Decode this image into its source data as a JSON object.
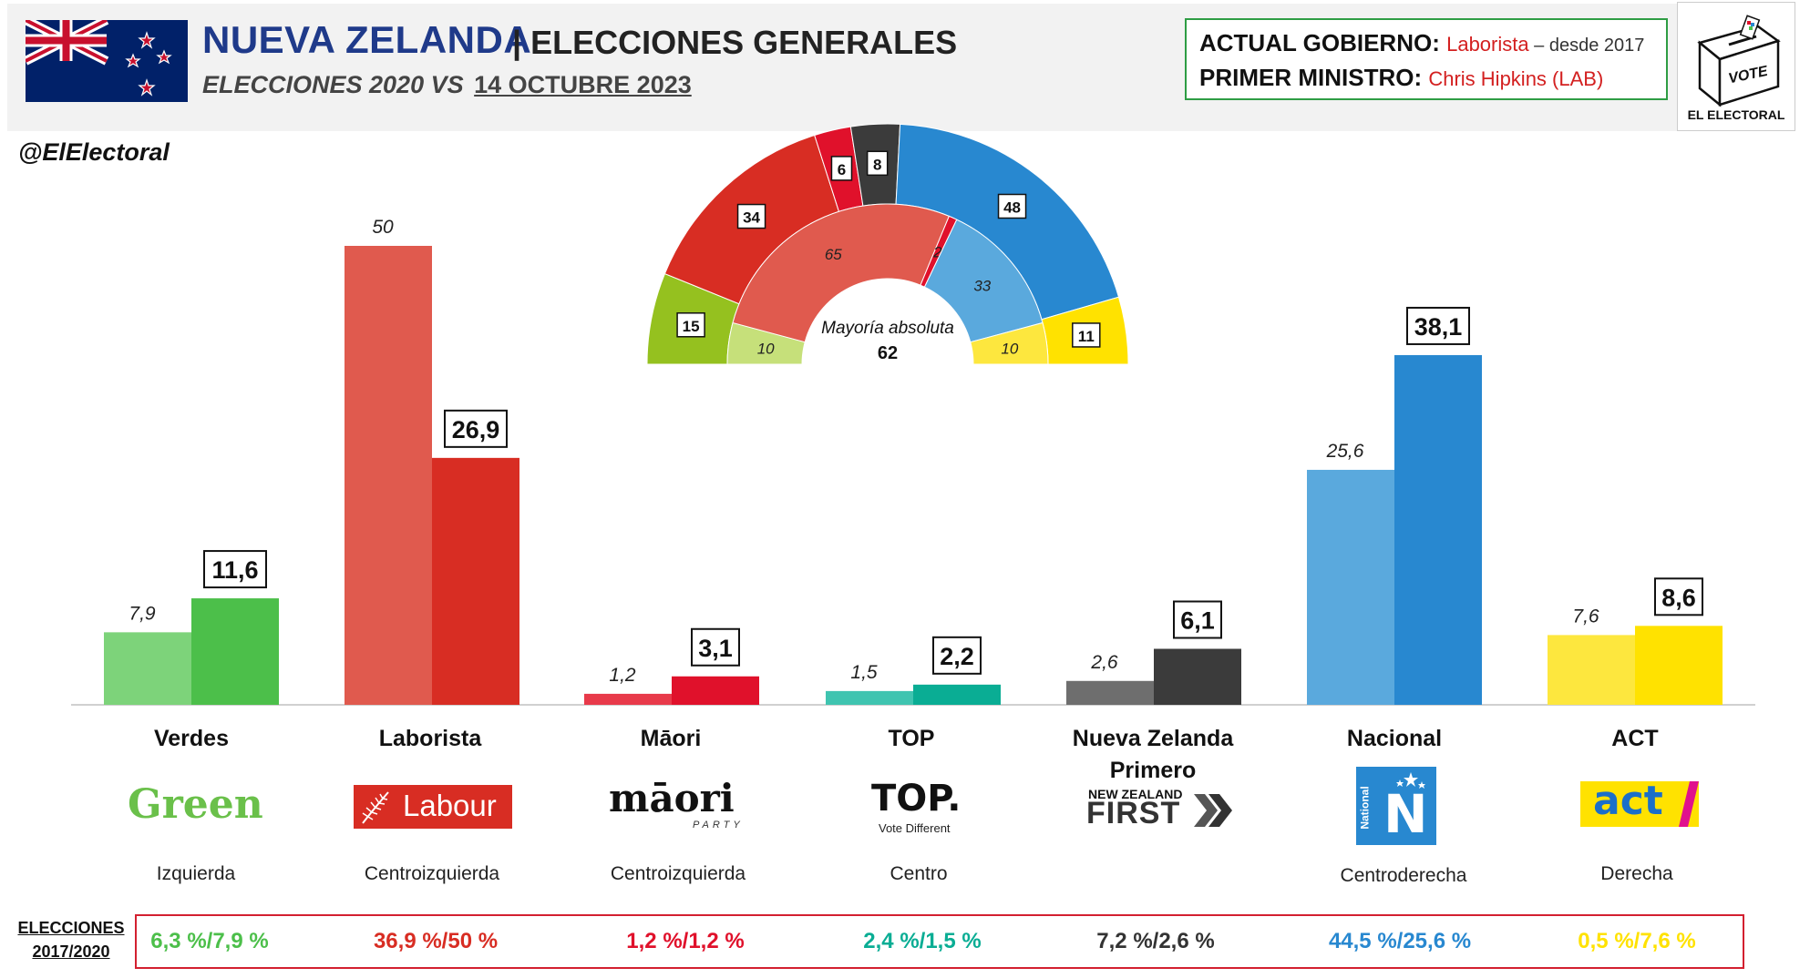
{
  "header": {
    "title": "NUEVA ZELANDA",
    "separator": "|",
    "subtitle_main": "ELECCIONES GENERALES",
    "comparison_prefix": "ELECCIONES 2020 VS",
    "comparison_date": "14 OCTUBRE 2023",
    "handle": "@ElElectoral"
  },
  "government": {
    "gov_label": "ACTUAL GOBIERNO:",
    "gov_party": "Laborista",
    "gov_since": " – desde 2017",
    "pm_label": "PRIMER MINISTRO:",
    "pm_name": "Chris Hipkins (LAB)"
  },
  "brand": {
    "vote": "VOTE",
    "name": "EL ELECTORAL"
  },
  "majority": {
    "label": "Mayoría absoluta",
    "value": "62"
  },
  "results": {
    "label_line1": "ELECCIONES",
    "label_line2": "2017/2020"
  },
  "parties": [
    {
      "name": "Verdes",
      "logo_text": "Green",
      "ideology": "Izquierda",
      "result": "6,3 %/7,9 %"
    },
    {
      "name": "Laborista",
      "logo_text": "Labour",
      "ideology": "Centroizquierda",
      "result": "36,9 %/50 %"
    },
    {
      "name": "Māori",
      "logo_text": "māori",
      "logo_sub": "PARTY",
      "ideology": "Centroizquierda",
      "result": "1,2 %/1,2 %"
    },
    {
      "name": "TOP",
      "logo_text": "TOP.",
      "logo_sub": "Vote Different",
      "ideology": "Centro",
      "result": "2,4 %/1,5 %"
    },
    {
      "name": "Nueva Zelanda Primero",
      "logo_text": "FIRST",
      "logo_sub": "NEW ZEALAND",
      "ideology": "",
      "result": "7,2 %/2,6 %"
    },
    {
      "name": "Nacional",
      "logo_text": "N",
      "logo_sub": "National",
      "ideology": "Centroderecha",
      "result": "44,5 %/25,6 %"
    },
    {
      "name": "ACT",
      "logo_text": "act",
      "ideology": "Derecha",
      "result": "0,5 %/7,6 %"
    }
  ],
  "colors": {
    "verdes": [
      "#7dd37a",
      "#4cbf4a"
    ],
    "laborista": [
      "#e05a4e",
      "#d82d23"
    ],
    "maori": [
      "#e83a4a",
      "#e0112b"
    ],
    "top": [
      "#3fc4b0",
      "#0aad94"
    ],
    "nzfirst": [
      "#6e6e6e",
      "#3b3b3b"
    ],
    "nacional": [
      "#5aa9dd",
      "#2888d0"
    ],
    "act": [
      "#fde73e",
      "#ffe200"
    ],
    "results_text": [
      "#4cbf4a",
      "#d82d23",
      "#e0112b",
      "#0aad94",
      "#333333",
      "#2888d0",
      "#ffe200"
    ]
  },
  "chart_data": [
    {
      "type": "bar",
      "categories": [
        "Verdes",
        "Laborista",
        "Māori",
        "TOP",
        "Nueva Zelanda Primero",
        "Nacional",
        "ACT"
      ],
      "series": [
        {
          "name": "Elecciones 2020",
          "values": [
            7.9,
            50,
            1.2,
            1.5,
            2.6,
            25.6,
            7.6
          ],
          "labels": [
            "7,9",
            "50",
            "1,2",
            "1,5",
            "2,6",
            "25,6",
            "7,6"
          ]
        },
        {
          "name": "14 Octubre 2023",
          "values": [
            11.6,
            26.9,
            3.1,
            2.2,
            6.1,
            38.1,
            8.6
          ],
          "labels": [
            "11,6",
            "26,9",
            "3,1",
            "2,2",
            "6,1",
            "38,1",
            "8,6"
          ]
        }
      ],
      "ylim": [
        0,
        55
      ]
    },
    {
      "type": "pie",
      "subtype": "hemicycle",
      "rings": [
        {
          "name": "2023",
          "slices": [
            {
              "party": "Verdes",
              "seats": 15,
              "color": "#95c11f"
            },
            {
              "party": "Laborista",
              "seats": 34,
              "color": "#d82d23"
            },
            {
              "party": "Māori",
              "seats": 6,
              "color": "#e0112b"
            },
            {
              "party": "Nueva Zelanda Primero",
              "seats": 8,
              "color": "#3b3b3b"
            },
            {
              "party": "Nacional",
              "seats": 48,
              "color": "#2888d0"
            },
            {
              "party": "ACT",
              "seats": 11,
              "color": "#ffe200"
            }
          ]
        },
        {
          "name": "2020",
          "slices": [
            {
              "party": "Verdes",
              "seats": 10,
              "color": "#c6e07a"
            },
            {
              "party": "Laborista",
              "seats": 65,
              "color": "#e05a4e"
            },
            {
              "party": "Māori",
              "seats": 2,
              "color": "#e0112b"
            },
            {
              "party": "Nacional",
              "seats": 33,
              "color": "#5aa9dd"
            },
            {
              "party": "ACT",
              "seats": 10,
              "color": "#fde73e"
            }
          ]
        }
      ]
    }
  ]
}
